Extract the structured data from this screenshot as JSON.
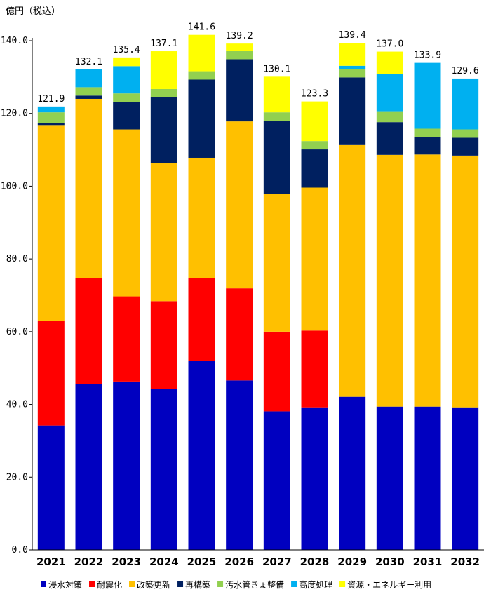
{
  "chart_data": {
    "type": "bar",
    "stacked": true,
    "title": "",
    "unit_label": "億円（税込）",
    "xlabel": "",
    "ylabel": "",
    "ylim": [
      0,
      140
    ],
    "ytick_step": 20,
    "ytick_labels": [
      "0.0",
      "20.0",
      "40.0",
      "60.0",
      "80.0",
      "100.0",
      "120.0",
      "140.0"
    ],
    "grid": false,
    "legend_position": "bottom",
    "categories": [
      "2021",
      "2022",
      "2023",
      "2024",
      "2025",
      "2026",
      "2027",
      "2028",
      "2029",
      "2030",
      "2031",
      "2032"
    ],
    "totals": [
      "121.9",
      "132.1",
      "135.4",
      "137.1",
      "141.6",
      "139.2",
      "130.1",
      "123.3",
      "139.4",
      "137.0",
      "133.9",
      "129.6"
    ],
    "series": [
      {
        "name": "浸水対策",
        "color": "#0000c0",
        "values": [
          34.2,
          45.7,
          46.3,
          44.2,
          52.0,
          46.6,
          38.1,
          39.2,
          42.1,
          39.4,
          39.4,
          39.2
        ]
      },
      {
        "name": "耐震化",
        "color": "#ff0000",
        "values": [
          28.7,
          29.1,
          23.4,
          24.2,
          22.8,
          25.3,
          21.9,
          21.1,
          0,
          0,
          0,
          0
        ]
      },
      {
        "name": "改築更新",
        "color": "#ffc000",
        "values": [
          53.9,
          49.2,
          45.9,
          37.9,
          33.0,
          45.9,
          37.9,
          39.3,
          69.2,
          69.2,
          69.3,
          69.2
        ]
      },
      {
        "name": "再構築",
        "color": "#002060",
        "values": [
          0.6,
          0.9,
          7.6,
          18.1,
          21.5,
          17.1,
          20.1,
          10.5,
          18.6,
          9.0,
          4.8,
          4.9
        ]
      },
      {
        "name": "汚水管きょ整備",
        "color": "#92d050",
        "values": [
          2.9,
          2.3,
          2.3,
          2.3,
          2.3,
          2.3,
          2.3,
          2.3,
          2.3,
          3.0,
          2.3,
          2.3
        ]
      },
      {
        "name": "高度処理",
        "color": "#00b0f0",
        "values": [
          1.6,
          4.9,
          7.5,
          0,
          0,
          0,
          0,
          0,
          0.9,
          10.3,
          18.1,
          14.0
        ]
      },
      {
        "name": "資源・エネルギー利用",
        "color": "#ffff00",
        "values": [
          0,
          0,
          2.4,
          10.4,
          10.0,
          2.0,
          9.8,
          10.9,
          6.3,
          6.1,
          0,
          0
        ]
      }
    ]
  }
}
